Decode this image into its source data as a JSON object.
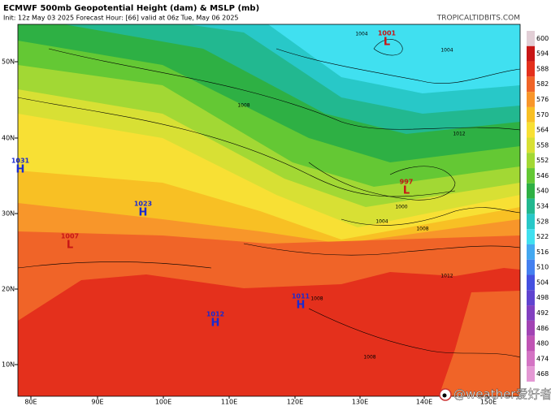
{
  "header": {
    "title": "ECMWF 500mb Geopotential Height (dam) & MSLP (mb)",
    "subtitle": "Init: 12z May 03 2025   Forecast Hour: [66]   valid at 06z Tue, May 06 2025",
    "site": "TROPICALTIDBITS.COM"
  },
  "colorbar": [
    {
      "value": 600,
      "color": "#e2cfd6"
    },
    {
      "value": 594,
      "color": "#c81616"
    },
    {
      "value": 588,
      "color": "#e4301c"
    },
    {
      "value": 582,
      "color": "#f06428"
    },
    {
      "value": 576,
      "color": "#f8962a"
    },
    {
      "value": 570,
      "color": "#f8c024"
    },
    {
      "value": 564,
      "color": "#f8e034"
    },
    {
      "value": 558,
      "color": "#d8e034"
    },
    {
      "value": 552,
      "color": "#a2d834"
    },
    {
      "value": 546,
      "color": "#64c834"
    },
    {
      "value": 540,
      "color": "#2eb044"
    },
    {
      "value": 534,
      "color": "#22b890"
    },
    {
      "value": 528,
      "color": "#28c8c8"
    },
    {
      "value": 522,
      "color": "#40e0f0"
    },
    {
      "value": 516,
      "color": "#44a8f0"
    },
    {
      "value": 510,
      "color": "#4480f0"
    },
    {
      "value": 504,
      "color": "#4450e0"
    },
    {
      "value": 498,
      "color": "#6044d0"
    },
    {
      "value": 492,
      "color": "#8240c0"
    },
    {
      "value": 486,
      "color": "#a244b4"
    },
    {
      "value": 480,
      "color": "#c054b4"
    },
    {
      "value": 474,
      "color": "#d474c4"
    },
    {
      "value": 468,
      "color": "#e498d4"
    }
  ],
  "latitudes": [
    "50N",
    "40N",
    "30N",
    "20N",
    "10N"
  ],
  "longitudes": [
    "80E",
    "90E",
    "100E",
    "110E",
    "120E",
    "130E",
    "140E",
    "150E"
  ],
  "pressure_centers": [
    {
      "letter": "L",
      "value": "1001"
    },
    {
      "letter": "L",
      "value": "997"
    },
    {
      "letter": "H",
      "value": "1031"
    },
    {
      "letter": "H",
      "value": "1023"
    },
    {
      "letter": "L",
      "value": "1007"
    },
    {
      "letter": "H",
      "value": "1012"
    },
    {
      "letter": "H",
      "value": "1011"
    }
  ],
  "isobar_labels": [
    "1004",
    "1004",
    "1008",
    "1012",
    "1000",
    "1004",
    "1008",
    "1012",
    "1008",
    "1008"
  ],
  "watermark": "@weather爱好者"
}
